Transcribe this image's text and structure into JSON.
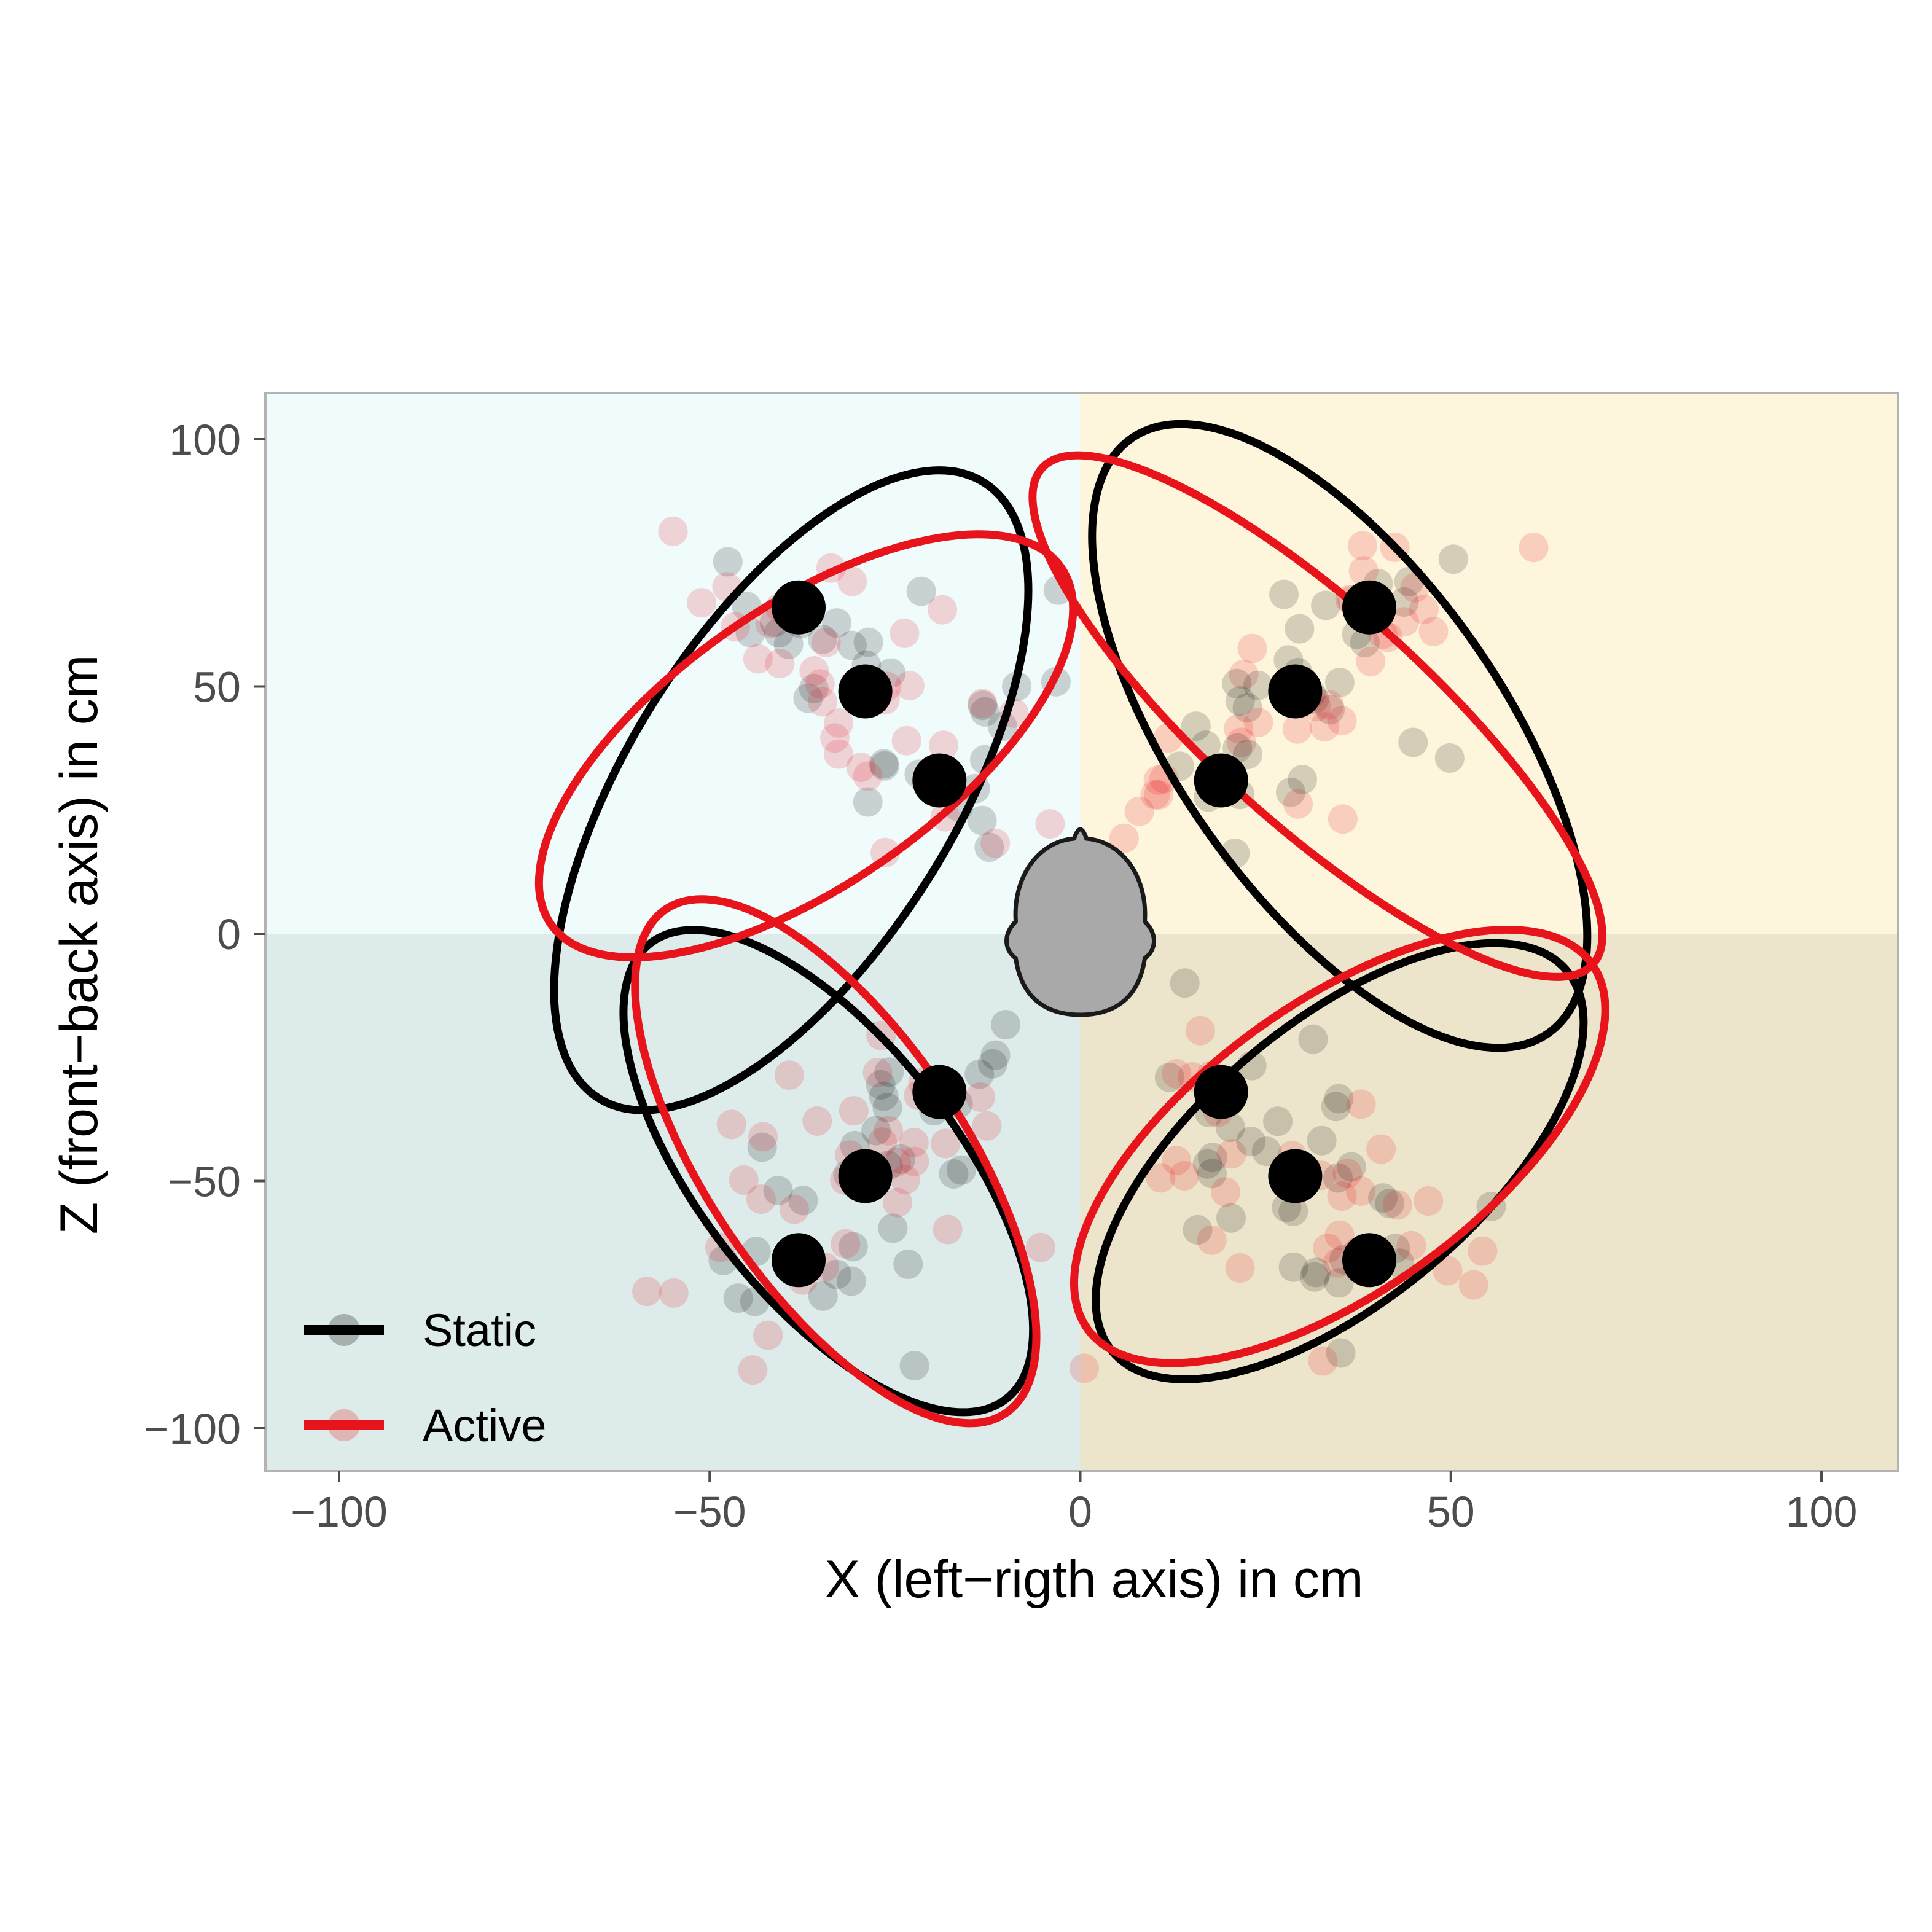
{
  "chart_data": {
    "type": "scatter",
    "title": "",
    "xlabel": "X (left−rigth axis) in cm",
    "ylabel": "Z (front−back axis) in cm",
    "xlim": [
      -120,
      110
    ],
    "ylim": [
      -110,
      110
    ],
    "x_ticks": [
      {
        "value": -100,
        "label": "−100"
      },
      {
        "value": -50,
        "label": "−50"
      },
      {
        "value": 0,
        "label": "0"
      },
      {
        "value": 50,
        "label": "50"
      },
      {
        "value": 100,
        "label": "100"
      }
    ],
    "y_ticks": [
      {
        "value": 100,
        "label": "100"
      },
      {
        "value": 50,
        "label": "50"
      },
      {
        "value": 0,
        "label": "0"
      },
      {
        "value": -50,
        "label": "−50"
      },
      {
        "value": -100,
        "label": "−100"
      }
    ],
    "grid": false,
    "legend_position": "bottom-left",
    "quadrant_colors": {
      "top_left": "#f0fbfc",
      "top_right": "#fdf5dc",
      "bottom_left": "#ddebea",
      "bottom_right": "#ede5cb"
    },
    "head_marker": {
      "x": 0,
      "y": 0,
      "color": "#a9a9a9"
    },
    "targets": [
      {
        "x": -38,
        "y": 66
      },
      {
        "x": -29,
        "y": 49
      },
      {
        "x": -19,
        "y": 31
      },
      {
        "x": 39,
        "y": 66
      },
      {
        "x": 29,
        "y": 49
      },
      {
        "x": 19,
        "y": 31
      },
      {
        "x": -19,
        "y": -32
      },
      {
        "x": -29,
        "y": -49
      },
      {
        "x": -38,
        "y": -66
      },
      {
        "x": 19,
        "y": -32
      },
      {
        "x": 29,
        "y": -49
      },
      {
        "x": 39,
        "y": -66
      }
    ],
    "series": [
      {
        "name": "Static",
        "color": "#000000",
        "ellipses": [
          {
            "cx": -39,
            "cy": 29,
            "rx": 49,
            "ry": 33,
            "angle_deg": 58
          },
          {
            "cx": 35,
            "cy": 40,
            "rx": 49,
            "ry": 33,
            "angle_deg": -55
          },
          {
            "cx": -34,
            "cy": -48,
            "rx": 39,
            "ry": 26,
            "angle_deg": -52
          },
          {
            "cx": 35,
            "cy": -46,
            "rx": 40,
            "ry": 28,
            "angle_deg": 40
          }
        ]
      },
      {
        "name": "Active",
        "color": "#e8141c",
        "ellipses": [
          {
            "cx": -37,
            "cy": 38,
            "rx": 42,
            "ry": 28,
            "angle_deg": 35
          },
          {
            "cx": 32,
            "cy": 44,
            "rx": 50,
            "ry": 22,
            "angle_deg": -42
          },
          {
            "cx": -33,
            "cy": -46,
            "rx": 41,
            "ry": 26,
            "angle_deg": -56
          },
          {
            "cx": 35,
            "cy": -43,
            "rx": 42,
            "ry": 29,
            "angle_deg": 36
          }
        ]
      }
    ]
  }
}
